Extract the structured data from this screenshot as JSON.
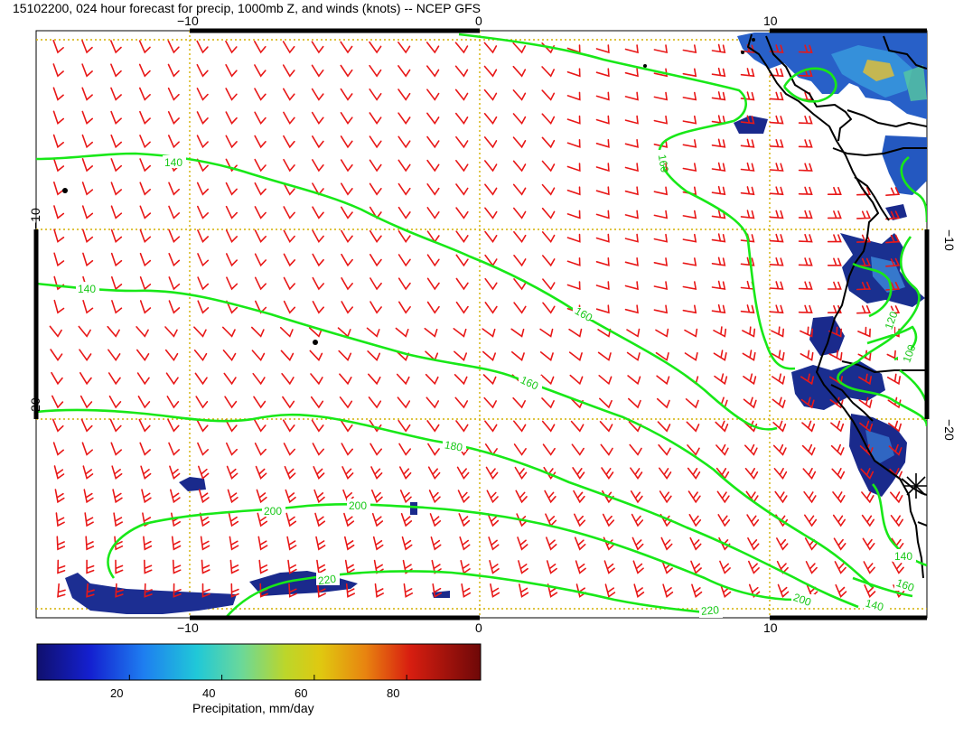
{
  "title": "15102200, 024 hour forecast for precip, 1000mb Z, and winds (knots) -- NCEP GFS",
  "colors": {
    "frame": "#000000",
    "grid": "#d4b000",
    "contour": "#18e818",
    "barb": "#e81818",
    "coast": "#000000",
    "precip_low": "#1a2a8c",
    "precip_mid": "#3a7ad8"
  },
  "axes": {
    "x_ticks": [
      "−10",
      "0",
      "10"
    ],
    "y_ticks": [
      "−10",
      "−20"
    ]
  },
  "contour_labels": [
    "140",
    "160",
    "140",
    "160",
    "180",
    "200",
    "200",
    "220",
    "220",
    "200",
    "160",
    "140",
    "160",
    "140",
    "120",
    "100"
  ],
  "colorbar": {
    "ticks": [
      "20",
      "40",
      "60",
      "80"
    ],
    "label": "Precipitation, mm/day",
    "range": [
      0,
      96
    ]
  }
}
